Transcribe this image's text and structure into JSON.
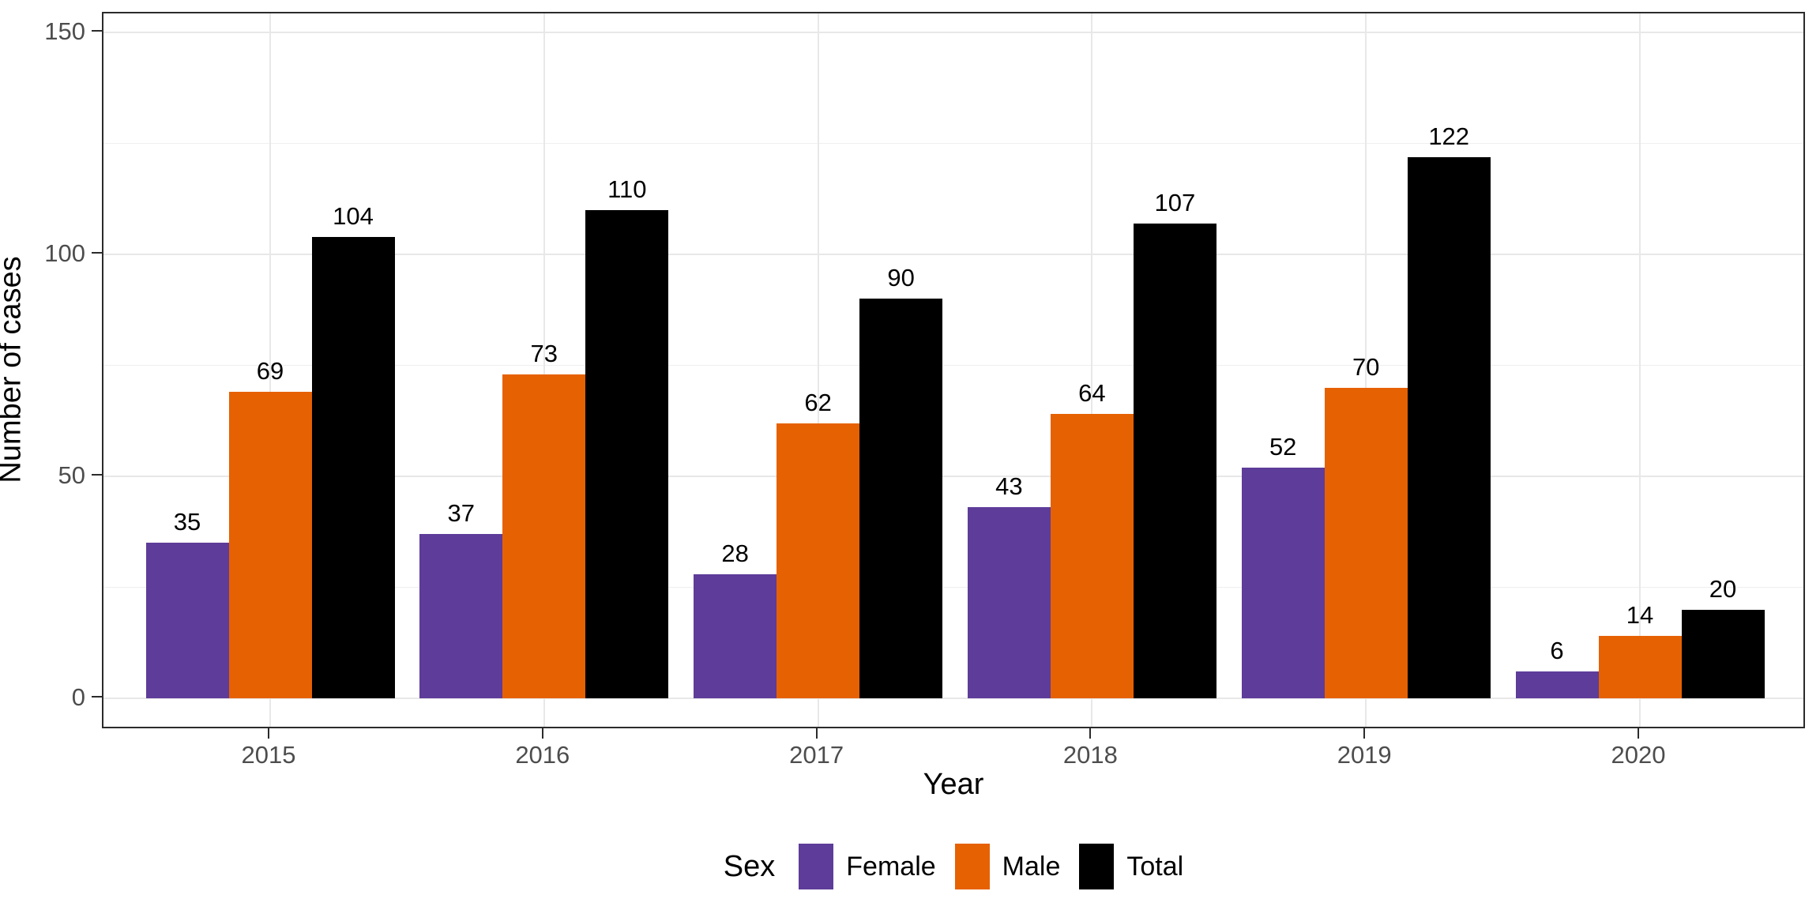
{
  "chart_data": {
    "type": "bar",
    "title": "",
    "categories": [
      "2015",
      "2016",
      "2017",
      "2018",
      "2019",
      "2020"
    ],
    "series": [
      {
        "name": "Female",
        "color": "#5E3C99",
        "values": [
          35,
          37,
          28,
          43,
          52,
          6
        ]
      },
      {
        "name": "Male",
        "color": "#E66101",
        "values": [
          69,
          73,
          62,
          64,
          70,
          14
        ]
      },
      {
        "name": "Total",
        "color": "#000000",
        "values": [
          104,
          110,
          90,
          107,
          122,
          20
        ]
      }
    ],
    "xlabel": "Year",
    "ylabel": "Number of cases",
    "ylim": [
      0,
      150
    ],
    "yticks": [
      0,
      50,
      100,
      150
    ],
    "yminor": [
      25,
      75,
      125
    ],
    "legend_title": "Sex",
    "legend_position": "bottom",
    "grid": "major and minor horizontal, major vertical at category centers",
    "bar_labels": true
  },
  "colors": {
    "female": "#5E3C99",
    "male": "#E66101",
    "total": "#000000",
    "grid_major": "#E8E8E8",
    "grid_minor": "#EFEFEF",
    "panel_border": "#2B2B2B",
    "axis_text": "#4D4D4D",
    "title_text": "#000000",
    "background": "#FFFFFF"
  }
}
